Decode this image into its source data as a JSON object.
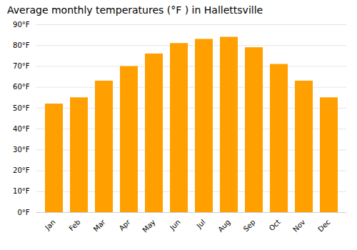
{
  "chart_data": {
    "type": "bar",
    "title": "Average monthly temperatures (°F ) in Hallettsville",
    "categories": [
      "Jan",
      "Feb",
      "Mar",
      "Apr",
      "May",
      "Jun",
      "Jul",
      "Aug",
      "Sep",
      "Oct",
      "Nov",
      "Dec"
    ],
    "values": [
      52,
      55,
      63,
      70,
      76,
      81,
      83,
      84,
      79,
      71,
      63,
      55
    ],
    "color": "#FFA000",
    "ylim": [
      0,
      90
    ],
    "yticks": [
      {
        "value": 0,
        "label": "0°F"
      },
      {
        "value": 10,
        "label": "10°F"
      },
      {
        "value": 20,
        "label": "20°F"
      },
      {
        "value": 30,
        "label": "30°F"
      },
      {
        "value": 40,
        "label": "40°F"
      },
      {
        "value": 50,
        "label": "50°F"
      },
      {
        "value": 60,
        "label": "60°F"
      },
      {
        "value": 70,
        "label": "70°F"
      },
      {
        "value": 80,
        "label": "80°F"
      },
      {
        "value": 90,
        "label": "90°F"
      }
    ],
    "grid": true
  }
}
